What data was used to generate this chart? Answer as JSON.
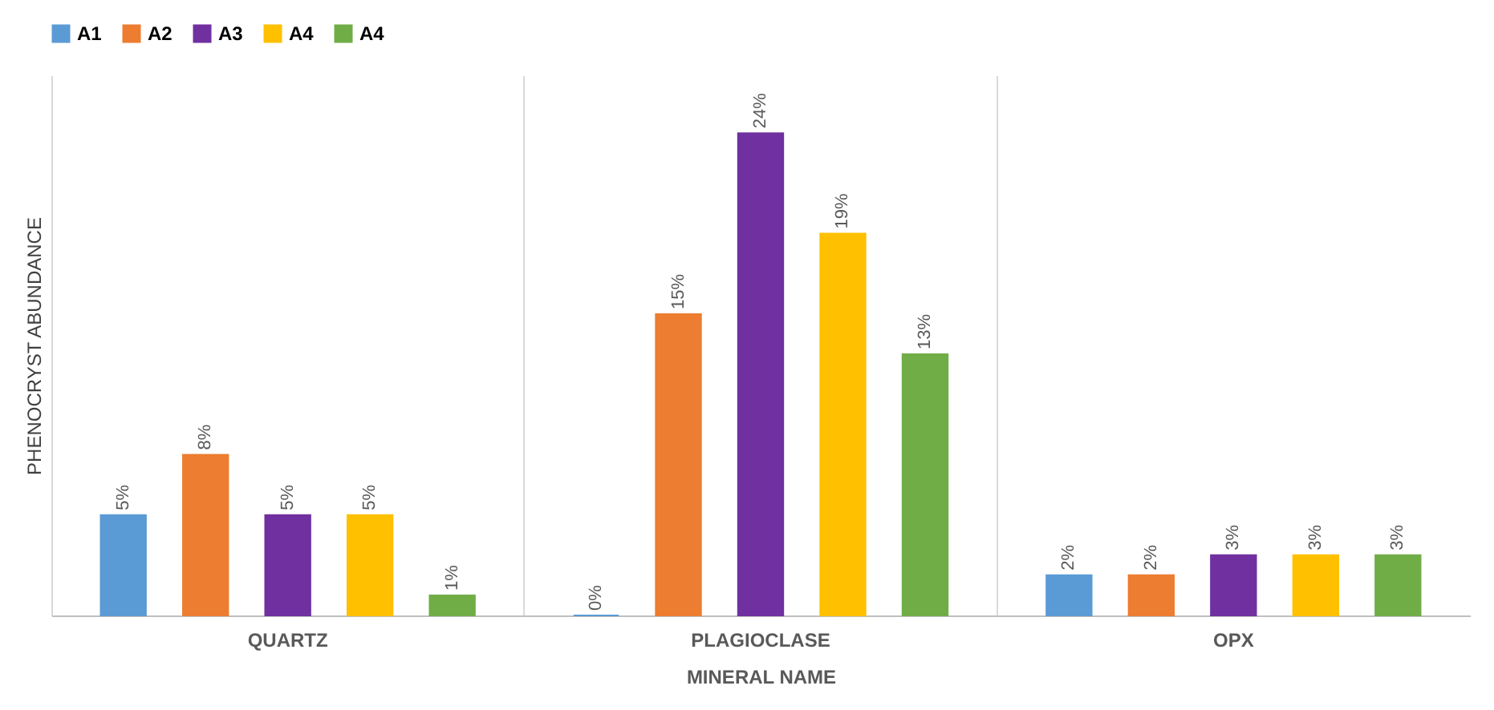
{
  "chart_data": {
    "type": "bar",
    "xlabel": "MINERAL NAME",
    "ylabel": "PHENOCRYST ABUNDANCE",
    "categories": [
      "QUARTZ",
      "PLAGIOCLASE",
      "OPX"
    ],
    "series": [
      {
        "name": "A1",
        "color": "#5b9bd5",
        "values": [
          5,
          0,
          2
        ],
        "value_labels": [
          "5%",
          "0%",
          "2%"
        ]
      },
      {
        "name": "A2",
        "color": "#ed7d31",
        "values": [
          8,
          15,
          2
        ],
        "value_labels": [
          "8%",
          "15%",
          "2%"
        ]
      },
      {
        "name": "A3",
        "color": "#7030a0",
        "values": [
          5,
          24,
          3
        ],
        "value_labels": [
          "5%",
          "24%",
          "3%"
        ]
      },
      {
        "name": "A4",
        "color": "#ffc000",
        "values": [
          5,
          19,
          3
        ],
        "value_labels": [
          "5%",
          "19%",
          "3%"
        ]
      },
      {
        "name": "A4",
        "color": "#70ad47",
        "values": [
          1,
          13,
          3
        ],
        "value_labels": [
          "1%",
          "13%",
          "3%"
        ]
      }
    ],
    "legend": "top",
    "grid": "x",
    "tick_labels": "x"
  }
}
